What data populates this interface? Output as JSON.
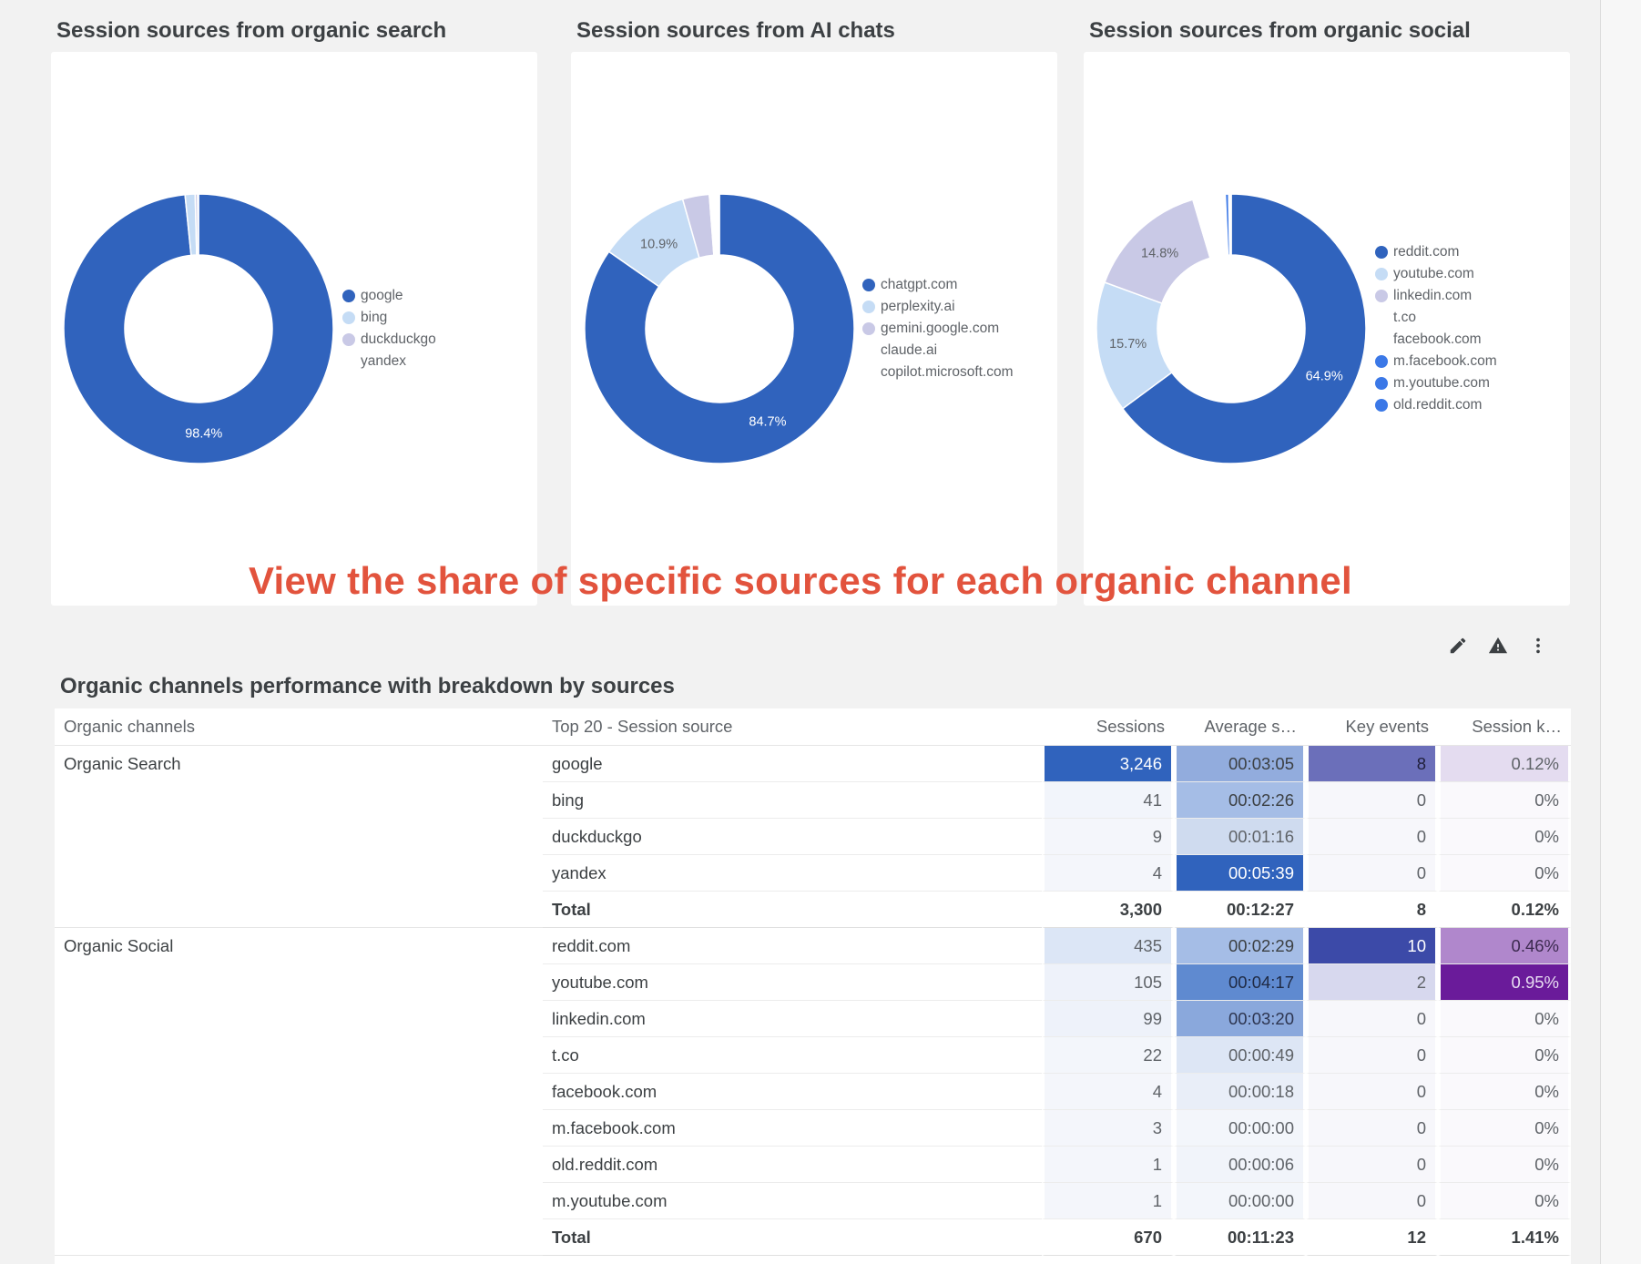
{
  "colors": {
    "primary": "#3063bd",
    "light_blue": "#c5dcf5",
    "lavender": "#c9c9e6",
    "bright_blue": "#3b78e7",
    "annotation": "#e2533d"
  },
  "panels": [
    {
      "title": "Session sources from organic search",
      "legend": [
        {
          "label": "google",
          "color": "#3063bd"
        },
        {
          "label": "bing",
          "color": "#c5dcf5"
        },
        {
          "label": "duckduckgo",
          "color": "#c9c9e6"
        },
        {
          "label": "yandex",
          "color": ""
        }
      ]
    },
    {
      "title": "Session sources from AI chats",
      "legend": [
        {
          "label": "chatgpt.com",
          "color": "#3063bd"
        },
        {
          "label": "perplexity.ai",
          "color": "#c5dcf5"
        },
        {
          "label": "gemini.google.com",
          "color": "#c9c9e6"
        },
        {
          "label": "claude.ai",
          "color": ""
        },
        {
          "label": "copilot.microsoft.com",
          "color": ""
        }
      ]
    },
    {
      "title": "Session sources from organic social",
      "legend": [
        {
          "label": "reddit.com",
          "color": "#3063bd"
        },
        {
          "label": "youtube.com",
          "color": "#c5dcf5"
        },
        {
          "label": "linkedin.com",
          "color": "#c9c9e6"
        },
        {
          "label": "t.co",
          "color": ""
        },
        {
          "label": "facebook.com",
          "color": ""
        },
        {
          "label": "m.facebook.com",
          "color": "#3b78e7"
        },
        {
          "label": "m.youtube.com",
          "color": "#3b78e7"
        },
        {
          "label": "old.reddit.com",
          "color": "#3b78e7"
        }
      ]
    }
  ],
  "chart_data": [
    {
      "type": "pie",
      "title": "Session sources from organic search",
      "labels": [
        "google",
        "bing",
        "duckduckgo",
        "yandex"
      ],
      "values": [
        98.4,
        1.2,
        0.3,
        0.1
      ],
      "colors": [
        "#3063bd",
        "#c5dcf5",
        "#c9c9e6",
        "#ffffff"
      ],
      "data_labels": [
        {
          "index": 0,
          "text": "98.4%"
        }
      ]
    },
    {
      "type": "pie",
      "title": "Session sources from AI chats",
      "labels": [
        "chatgpt.com",
        "perplexity.ai",
        "gemini.google.com",
        "claude.ai",
        "copilot.microsoft.com"
      ],
      "values": [
        84.7,
        10.9,
        3.2,
        0.8,
        0.4
      ],
      "colors": [
        "#3063bd",
        "#c5dcf5",
        "#c9c9e6",
        "#ffffff",
        "#ffffff"
      ],
      "data_labels": [
        {
          "index": 0,
          "text": "84.7%"
        },
        {
          "index": 1,
          "text": "10.9%"
        }
      ]
    },
    {
      "type": "pie",
      "title": "Session sources from organic social",
      "labels": [
        "reddit.com",
        "youtube.com",
        "linkedin.com",
        "t.co",
        "facebook.com",
        "m.facebook.com",
        "m.youtube.com",
        "old.reddit.com"
      ],
      "values": [
        64.9,
        15.7,
        14.8,
        3.3,
        0.6,
        0.4,
        0.15,
        0.15
      ],
      "colors": [
        "#3063bd",
        "#c5dcf5",
        "#c9c9e6",
        "#ffffff",
        "#ffffff",
        "#3b78e7",
        "#3b78e7",
        "#3b78e7"
      ],
      "data_labels": [
        {
          "index": 0,
          "text": "64.9%"
        },
        {
          "index": 1,
          "text": "15.7%"
        },
        {
          "index": 2,
          "text": "14.8%"
        }
      ]
    }
  ],
  "annotation": "View the share of specific sources for each organic channel",
  "toolbar": {
    "icons": [
      "pencil-icon",
      "warning-icon",
      "more-vert-icon"
    ]
  },
  "table": {
    "title": "Organic channels performance with breakdown by sources",
    "headers": [
      "Organic channels",
      "Top 20 - Session source",
      "Sessions",
      "Average s…",
      "Key events",
      "Session k…"
    ],
    "groups": [
      {
        "channel": "Organic Search",
        "rows": [
          {
            "source": "google",
            "sessions": "3,246",
            "avg": "00:03:05",
            "key": "8",
            "rate": "0.12%",
            "bg": [
              "#3063bd",
              "#92acdd",
              "#6b6fba",
              "#e4dcf0"
            ],
            "fg": [
              "#ffffff",
              "#3c4043",
              "#1f1f3a",
              "#5f6368"
            ]
          },
          {
            "source": "bing",
            "sessions": "41",
            "avg": "00:02:26",
            "key": "0",
            "rate": "0%",
            "bg": [
              "#f2f5fb",
              "#a5bde6",
              "#f7f7fb",
              "#faf9fc"
            ],
            "fg": [
              "#5f6368",
              "#3c4043",
              "#5f6368",
              "#5f6368"
            ]
          },
          {
            "source": "duckduckgo",
            "sessions": "9",
            "avg": "00:01:16",
            "key": "0",
            "rate": "0%",
            "bg": [
              "#f4f6fb",
              "#cfdbef",
              "#f7f7fb",
              "#faf9fc"
            ],
            "fg": [
              "#5f6368",
              "#5f6368",
              "#5f6368",
              "#5f6368"
            ]
          },
          {
            "source": "yandex",
            "sessions": "4",
            "avg": "00:05:39",
            "key": "0",
            "rate": "0%",
            "bg": [
              "#f4f6fb",
              "#3063bd",
              "#f7f7fb",
              "#faf9fc"
            ],
            "fg": [
              "#5f6368",
              "#ffffff",
              "#5f6368",
              "#5f6368"
            ]
          }
        ],
        "total": {
          "label": "Total",
          "sessions": "3,300",
          "avg": "00:12:27",
          "key": "8",
          "rate": "0.12%"
        }
      },
      {
        "channel": "Organic Social",
        "rows": [
          {
            "source": "reddit.com",
            "sessions": "435",
            "avg": "00:02:29",
            "key": "10",
            "rate": "0.46%",
            "bg": [
              "#dce6f6",
              "#a5bde6",
              "#3c4aa8",
              "#b087cc"
            ],
            "fg": [
              "#5f6368",
              "#3c4043",
              "#ffffff",
              "#3c2a4f"
            ]
          },
          {
            "source": "youtube.com",
            "sessions": "105",
            "avg": "00:04:17",
            "key": "2",
            "rate": "0.95%",
            "bg": [
              "#eef2fa",
              "#5f8ad0",
              "#d7d8ee",
              "#6a1b9a"
            ],
            "fg": [
              "#5f6368",
              "#1f2a44",
              "#5f6368",
              "#e8ddf2"
            ]
          },
          {
            "source": "linkedin.com",
            "sessions": "99",
            "avg": "00:03:20",
            "key": "0",
            "rate": "0%",
            "bg": [
              "#eef2fa",
              "#8aa8dc",
              "#f7f7fb",
              "#faf9fc"
            ],
            "fg": [
              "#5f6368",
              "#2d3550",
              "#5f6368",
              "#5f6368"
            ]
          },
          {
            "source": "t.co",
            "sessions": "22",
            "avg": "00:00:49",
            "key": "0",
            "rate": "0%",
            "bg": [
              "#f3f6fb",
              "#dde6f5",
              "#f7f7fb",
              "#faf9fc"
            ],
            "fg": [
              "#5f6368",
              "#5f6368",
              "#5f6368",
              "#5f6368"
            ]
          },
          {
            "source": "facebook.com",
            "sessions": "4",
            "avg": "00:00:18",
            "key": "0",
            "rate": "0%",
            "bg": [
              "#f4f6fb",
              "#e9eef8",
              "#f7f7fb",
              "#faf9fc"
            ],
            "fg": [
              "#5f6368",
              "#5f6368",
              "#5f6368",
              "#5f6368"
            ]
          },
          {
            "source": "m.facebook.com",
            "sessions": "3",
            "avg": "00:00:00",
            "key": "0",
            "rate": "0%",
            "bg": [
              "#f4f6fb",
              "#f3f6fb",
              "#f7f7fb",
              "#faf9fc"
            ],
            "fg": [
              "#5f6368",
              "#5f6368",
              "#5f6368",
              "#5f6368"
            ]
          },
          {
            "source": "old.reddit.com",
            "sessions": "1",
            "avg": "00:00:06",
            "key": "0",
            "rate": "0%",
            "bg": [
              "#f4f6fb",
              "#f1f4fa",
              "#f7f7fb",
              "#faf9fc"
            ],
            "fg": [
              "#5f6368",
              "#5f6368",
              "#5f6368",
              "#5f6368"
            ]
          },
          {
            "source": "m.youtube.com",
            "sessions": "1",
            "avg": "00:00:00",
            "key": "0",
            "rate": "0%",
            "bg": [
              "#f4f6fb",
              "#f3f6fb",
              "#f7f7fb",
              "#faf9fc"
            ],
            "fg": [
              "#5f6368",
              "#5f6368",
              "#5f6368",
              "#5f6368"
            ]
          }
        ],
        "total": {
          "label": "Total",
          "sessions": "670",
          "avg": "00:11:23",
          "key": "12",
          "rate": "1.41%"
        }
      }
    ]
  }
}
